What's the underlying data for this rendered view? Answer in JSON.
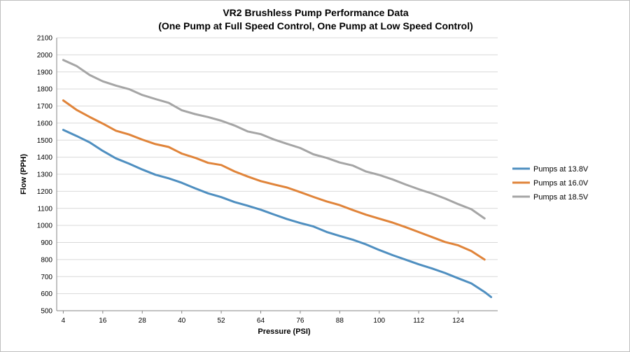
{
  "chart_data": {
    "type": "line",
    "title": "VR2 Brushless Pump Performance Data",
    "subtitle": "(One Pump at Full Speed Control, One Pump at Low Speed Control)",
    "xlabel": "Pressure (PSI)",
    "ylabel": "Flow (PPH)",
    "ylim": [
      500,
      2100
    ],
    "y_ticks": [
      500,
      600,
      700,
      800,
      900,
      1000,
      1100,
      1200,
      1300,
      1400,
      1500,
      1600,
      1700,
      1800,
      1900,
      2000,
      2100
    ],
    "x_range": [
      4,
      134
    ],
    "x_ticks": [
      4,
      16,
      28,
      40,
      52,
      64,
      76,
      88,
      100,
      112,
      124
    ],
    "grid": true,
    "legend_position": "right",
    "series": [
      {
        "name": "Pumps at 13.8V",
        "color": "#4f8fc0",
        "x": [
          4,
          8,
          12,
          16,
          20,
          24,
          28,
          32,
          36,
          40,
          44,
          48,
          52,
          56,
          60,
          64,
          68,
          72,
          76,
          80,
          84,
          88,
          92,
          96,
          100,
          104,
          108,
          112,
          116,
          120,
          124,
          128,
          132,
          134
        ],
        "values": [
          1560,
          1525,
          1487,
          1437,
          1393,
          1362,
          1328,
          1297,
          1276,
          1250,
          1218,
          1188,
          1166,
          1137,
          1116,
          1092,
          1064,
          1037,
          1014,
          994,
          962,
          938,
          916,
          889,
          856,
          826,
          799,
          772,
          748,
          721,
          690,
          660,
          610,
          580
        ]
      },
      {
        "name": "Pumps at 16.0V",
        "color": "#e0843a",
        "x": [
          4,
          8,
          12,
          16,
          20,
          24,
          28,
          32,
          36,
          40,
          44,
          48,
          52,
          56,
          60,
          64,
          68,
          72,
          76,
          80,
          84,
          88,
          92,
          96,
          100,
          104,
          108,
          112,
          116,
          120,
          124,
          128,
          132
        ],
        "values": [
          1733,
          1678,
          1636,
          1597,
          1555,
          1533,
          1503,
          1477,
          1460,
          1421,
          1397,
          1367,
          1354,
          1317,
          1287,
          1260,
          1240,
          1222,
          1195,
          1167,
          1141,
          1119,
          1090,
          1063,
          1040,
          1017,
          990,
          961,
          932,
          903,
          883,
          850,
          800
        ]
      },
      {
        "name": "Pumps at 18.5V",
        "color": "#a5a5a5",
        "x": [
          4,
          8,
          12,
          16,
          20,
          24,
          28,
          32,
          36,
          40,
          44,
          48,
          52,
          56,
          60,
          64,
          68,
          72,
          76,
          80,
          84,
          88,
          92,
          96,
          100,
          104,
          108,
          112,
          116,
          120,
          124,
          128,
          132
        ],
        "values": [
          1970,
          1935,
          1882,
          1845,
          1820,
          1799,
          1765,
          1741,
          1719,
          1675,
          1653,
          1635,
          1614,
          1586,
          1551,
          1535,
          1504,
          1478,
          1454,
          1417,
          1396,
          1369,
          1351,
          1316,
          1296,
          1270,
          1240,
          1212,
          1187,
          1158,
          1125,
          1095,
          1041
        ]
      }
    ]
  }
}
